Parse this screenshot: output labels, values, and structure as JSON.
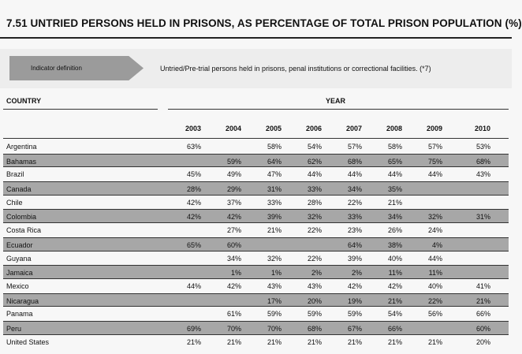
{
  "title": "7.51 UNTRIED PERSONS HELD IN PRISONS, AS PERCENTAGE OF TOTAL PRISON POPULATION (%)",
  "indicator": {
    "label": "Indicator definition",
    "text": "Untried/Pre-trial persons held in prisons, penal institutions or correctional facilities. (*7)"
  },
  "headers": {
    "country": "COUNTRY",
    "year": "YEAR",
    "years": [
      "2003",
      "2004",
      "2005",
      "2006",
      "2007",
      "2008",
      "2009",
      "2010"
    ]
  },
  "rows": [
    {
      "country": "Argentina",
      "values": [
        "63%",
        "",
        "58%",
        "54%",
        "57%",
        "58%",
        "57%",
        "53%"
      ]
    },
    {
      "country": "Bahamas",
      "values": [
        "",
        "59%",
        "64%",
        "62%",
        "68%",
        "65%",
        "75%",
        "68%"
      ]
    },
    {
      "country": "Brazil",
      "values": [
        "45%",
        "49%",
        "47%",
        "44%",
        "44%",
        "44%",
        "44%",
        "43%"
      ]
    },
    {
      "country": "Canada",
      "values": [
        "28%",
        "29%",
        "31%",
        "33%",
        "34%",
        "35%",
        "",
        ""
      ]
    },
    {
      "country": "Chile",
      "values": [
        "42%",
        "37%",
        "33%",
        "28%",
        "22%",
        "21%",
        "",
        ""
      ]
    },
    {
      "country": "Colombia",
      "values": [
        "42%",
        "42%",
        "39%",
        "32%",
        "33%",
        "34%",
        "32%",
        "31%"
      ]
    },
    {
      "country": "Costa Rica",
      "values": [
        "",
        "27%",
        "21%",
        "22%",
        "23%",
        "26%",
        "24%",
        ""
      ]
    },
    {
      "country": "Ecuador",
      "values": [
        "65%",
        "60%",
        "",
        "",
        "64%",
        "38%",
        "4%",
        ""
      ]
    },
    {
      "country": "Guyana",
      "values": [
        "",
        "34%",
        "32%",
        "22%",
        "39%",
        "40%",
        "44%",
        ""
      ]
    },
    {
      "country": "Jamaica",
      "values": [
        "",
        "1%",
        "1%",
        "2%",
        "2%",
        "11%",
        "11%",
        ""
      ]
    },
    {
      "country": "Mexico",
      "values": [
        "44%",
        "42%",
        "43%",
        "43%",
        "42%",
        "42%",
        "40%",
        "41%"
      ]
    },
    {
      "country": "Nicaragua",
      "values": [
        "",
        "",
        "17%",
        "20%",
        "19%",
        "21%",
        "22%",
        "21%"
      ]
    },
    {
      "country": "Panama",
      "values": [
        "",
        "61%",
        "59%",
        "59%",
        "59%",
        "54%",
        "56%",
        "66%"
      ]
    },
    {
      "country": "Peru",
      "values": [
        "69%",
        "70%",
        "70%",
        "68%",
        "67%",
        "66%",
        "",
        "60%"
      ]
    },
    {
      "country": "United States",
      "values": [
        "21%",
        "21%",
        "21%",
        "21%",
        "21%",
        "21%",
        "21%",
        "20%"
      ]
    }
  ]
}
